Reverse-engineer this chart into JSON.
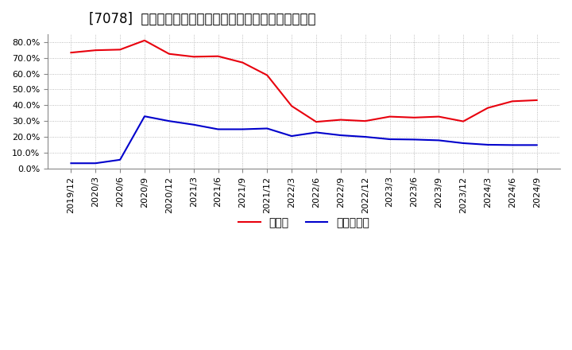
{
  "title": "[7078]  現預金、有利子負債の総資産に対する比率の推移",
  "x_labels": [
    "2019/12",
    "2020/3",
    "2020/6",
    "2020/9",
    "2020/12",
    "2021/3",
    "2021/6",
    "2021/9",
    "2021/12",
    "2022/3",
    "2022/6",
    "2022/9",
    "2022/12",
    "2023/3",
    "2023/6",
    "2023/9",
    "2023/12",
    "2024/3",
    "2024/6",
    "2024/9"
  ],
  "cash_ratio": [
    0.733,
    0.748,
    0.752,
    0.81,
    0.725,
    0.707,
    0.71,
    0.67,
    0.59,
    0.395,
    0.295,
    0.308,
    0.3,
    0.328,
    0.322,
    0.328,
    0.298,
    0.383,
    0.425,
    0.432
  ],
  "debt_ratio": [
    0.033,
    0.033,
    0.055,
    0.33,
    0.3,
    0.277,
    0.248,
    0.248,
    0.253,
    0.205,
    0.228,
    0.21,
    0.2,
    0.185,
    0.183,
    0.178,
    0.16,
    0.15,
    0.148,
    0.148
  ],
  "cash_color": "#e8000d",
  "debt_color": "#0000cc",
  "background_color": "#ffffff",
  "grid_color": "#aaaaaa",
  "ylim": [
    0.0,
    0.85
  ],
  "yticks": [
    0.0,
    0.1,
    0.2,
    0.3,
    0.4,
    0.5,
    0.6,
    0.7,
    0.8
  ],
  "legend_cash": "現預金",
  "legend_debt": "有利子負債",
  "title_fontsize": 12,
  "legend_fontsize": 10,
  "tick_fontsize": 8
}
